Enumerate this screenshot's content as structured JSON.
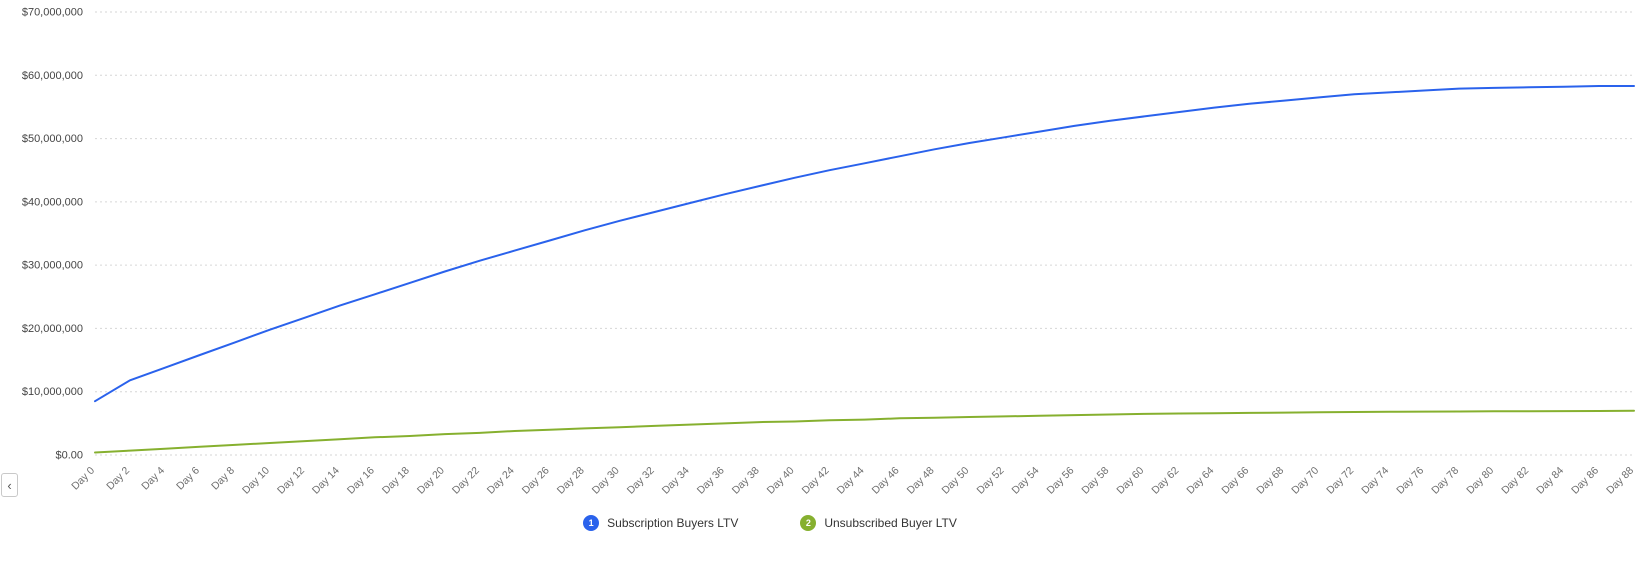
{
  "chart_data": {
    "type": "line",
    "title": "",
    "xlabel": "",
    "ylabel": "",
    "grid": "dotted-horizontal",
    "legend_position": "bottom-center",
    "ylim": [
      0,
      70000000
    ],
    "y_ticks": [
      0,
      10000000,
      20000000,
      30000000,
      40000000,
      50000000,
      60000000,
      70000000
    ],
    "y_tick_labels": [
      "$0.00",
      "$10,000,000",
      "$20,000,000",
      "$30,000,000",
      "$40,000,000",
      "$50,000,000",
      "$60,000,000",
      "$70,000,000"
    ],
    "x": [
      0,
      2,
      4,
      6,
      8,
      10,
      12,
      14,
      16,
      18,
      20,
      22,
      24,
      26,
      28,
      30,
      32,
      34,
      36,
      38,
      40,
      42,
      44,
      46,
      48,
      50,
      52,
      54,
      56,
      58,
      60,
      62,
      64,
      66,
      68,
      70,
      72,
      74,
      76,
      78,
      80,
      82,
      84,
      86,
      88
    ],
    "categories": [
      "Day 0",
      "Day 2",
      "Day 4",
      "Day 6",
      "Day 8",
      "Day 10",
      "Day 12",
      "Day 14",
      "Day 16",
      "Day 18",
      "Day 20",
      "Day 22",
      "Day 24",
      "Day 26",
      "Day 28",
      "Day 30",
      "Day 32",
      "Day 34",
      "Day 36",
      "Day 38",
      "Day 40",
      "Day 42",
      "Day 44",
      "Day 46",
      "Day 48",
      "Day 50",
      "Day 52",
      "Day 54",
      "Day 56",
      "Day 58",
      "Day 60",
      "Day 62",
      "Day 64",
      "Day 66",
      "Day 68",
      "Day 70",
      "Day 72",
      "Day 74",
      "Day 76",
      "Day 78",
      "Day 80",
      "Day 82",
      "Day 84",
      "Day 86",
      "Day 88"
    ],
    "series": [
      {
        "index": 1,
        "name": "Subscription Buyers LTV",
        "color": "#2a62ec",
        "values": [
          8500000,
          11800000,
          13800000,
          15800000,
          17800000,
          19800000,
          21700000,
          23600000,
          25400000,
          27200000,
          29000000,
          30700000,
          32300000,
          33900000,
          35500000,
          37000000,
          38400000,
          39800000,
          41200000,
          42500000,
          43800000,
          45000000,
          46100000,
          47200000,
          48300000,
          49300000,
          50200000,
          51100000,
          52000000,
          52800000,
          53500000,
          54200000,
          54900000,
          55500000,
          56000000,
          56500000,
          57000000,
          57300000,
          57600000,
          57900000,
          58000000,
          58100000,
          58200000,
          58300000,
          58300000
        ]
      },
      {
        "index": 2,
        "name": "Unsubscribed Buyer LTV",
        "color": "#86b02f",
        "values": [
          400000,
          700000,
          1000000,
          1300000,
          1600000,
          1900000,
          2200000,
          2500000,
          2800000,
          3000000,
          3300000,
          3500000,
          3800000,
          4000000,
          4200000,
          4400000,
          4600000,
          4800000,
          5000000,
          5200000,
          5300000,
          5500000,
          5600000,
          5800000,
          5900000,
          6000000,
          6100000,
          6200000,
          6300000,
          6400000,
          6500000,
          6550000,
          6600000,
          6650000,
          6700000,
          6750000,
          6800000,
          6820000,
          6850000,
          6880000,
          6900000,
          6920000,
          6940000,
          6960000,
          7000000
        ]
      }
    ]
  },
  "controls": {
    "scroll_left_glyph": "‹"
  }
}
